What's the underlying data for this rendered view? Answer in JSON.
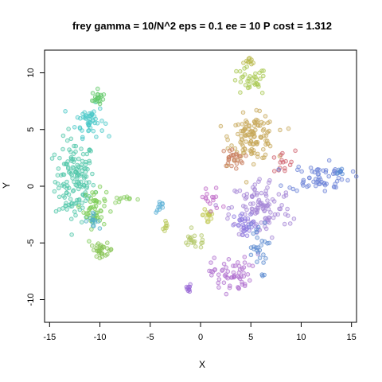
{
  "chart_data": {
    "type": "scatter",
    "title": "frey gamma = 10/N^2 eps = 0.1 ee = 10 P cost = 1.312",
    "xlabel": "X",
    "ylabel": "Y",
    "xlim": [
      -15.5,
      15.5
    ],
    "ylim": [
      -12,
      12
    ],
    "xticks": [
      -15,
      -10,
      -5,
      0,
      5,
      10,
      15
    ],
    "yticks": [
      -10,
      -5,
      0,
      5,
      10
    ],
    "xtick_labels": [
      "-15",
      "-10",
      "-5",
      "0",
      "5",
      "10",
      "15"
    ],
    "ytick_labels": [
      "-10",
      "-5",
      "0",
      "5",
      "10"
    ],
    "grid": false,
    "legend": "none",
    "point_style": "open circles, semi-transparent, rainbow hue",
    "clusters": [
      {
        "color": "#4fc6a8",
        "center": [
          -12.5,
          0.5
        ],
        "spread": [
          1.4,
          2.6
        ],
        "n": 150
      },
      {
        "color": "#49c8c8",
        "center": [
          -11.0,
          5.8
        ],
        "spread": [
          1.0,
          1.0
        ],
        "n": 50
      },
      {
        "color": "#5fc866",
        "center": [
          -10.2,
          7.8
        ],
        "spread": [
          0.4,
          0.5
        ],
        "n": 20
      },
      {
        "color": "#7ccc55",
        "center": [
          -10.5,
          -2.0
        ],
        "spread": [
          0.8,
          1.2
        ],
        "n": 50
      },
      {
        "color": "#88c455",
        "center": [
          -9.8,
          -5.6
        ],
        "spread": [
          0.8,
          0.4
        ],
        "n": 30
      },
      {
        "color": "#4fb0c6",
        "center": [
          -10.8,
          -3.0
        ],
        "spread": [
          0.5,
          0.4
        ],
        "n": 15
      },
      {
        "color": "#8ccf66",
        "center": [
          -7.5,
          -1.2
        ],
        "spread": [
          1.0,
          0.2
        ],
        "n": 12
      },
      {
        "color": "#5ab0d6",
        "center": [
          -4.0,
          -1.8
        ],
        "spread": [
          0.3,
          0.4
        ],
        "n": 10
      },
      {
        "color": "#b8c85a",
        "center": [
          -3.5,
          -3.5
        ],
        "spread": [
          0.2,
          0.6
        ],
        "n": 8
      },
      {
        "color": "#c0c850",
        "center": [
          0.8,
          -2.5
        ],
        "spread": [
          0.4,
          0.8
        ],
        "n": 15
      },
      {
        "color": "#b4c86a",
        "center": [
          -0.6,
          -4.8
        ],
        "spread": [
          1.0,
          0.5
        ],
        "n": 20
      },
      {
        "color": "#a8c850",
        "center": [
          4.8,
          9.2
        ],
        "spread": [
          1.3,
          0.9
        ],
        "n": 35
      },
      {
        "color": "#b8b84a",
        "center": [
          5.0,
          11.0
        ],
        "spread": [
          0.4,
          0.2
        ],
        "n": 10
      },
      {
        "color": "#c7a85a",
        "center": [
          5.2,
          4.3
        ],
        "spread": [
          1.6,
          1.4
        ],
        "n": 120
      },
      {
        "color": "#c77a5a",
        "center": [
          3.2,
          2.5
        ],
        "spread": [
          0.8,
          0.6
        ],
        "n": 25
      },
      {
        "color": "#d0626e",
        "center": [
          8.0,
          2.0
        ],
        "spread": [
          1.0,
          0.8
        ],
        "n": 15
      },
      {
        "color": "#a586d6",
        "center": [
          6.0,
          -2.0
        ],
        "spread": [
          2.2,
          2.0
        ],
        "n": 110
      },
      {
        "color": "#6e84d8",
        "center": [
          11.8,
          0.8
        ],
        "spread": [
          2.2,
          0.9
        ],
        "n": 60
      },
      {
        "color": "#5b8ad0",
        "center": [
          5.5,
          -5.5
        ],
        "spread": [
          0.8,
          1.8
        ],
        "n": 30
      },
      {
        "color": "#b070cf",
        "center": [
          3.0,
          -7.8
        ],
        "spread": [
          1.4,
          1.1
        ],
        "n": 60
      },
      {
        "color": "#9a6ad6",
        "center": [
          -1.2,
          -9.1
        ],
        "spread": [
          0.3,
          0.3
        ],
        "n": 10
      },
      {
        "color": "#8e7ae0",
        "center": [
          4.5,
          -3.5
        ],
        "spread": [
          0.8,
          0.8
        ],
        "n": 30
      },
      {
        "color": "#c06bc8",
        "center": [
          1.0,
          -1.2
        ],
        "spread": [
          0.8,
          0.9
        ],
        "n": 15
      },
      {
        "color": "#5a8ad4",
        "center": [
          14.0,
          1.3
        ],
        "spread": [
          0.6,
          0.3
        ],
        "n": 10
      }
    ]
  }
}
